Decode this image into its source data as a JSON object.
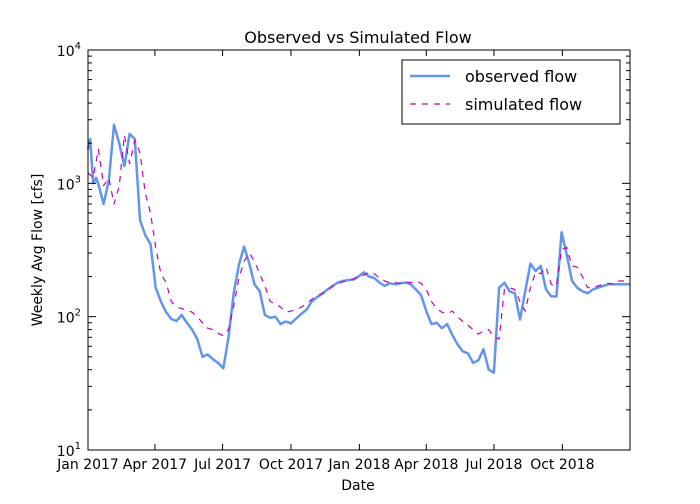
{
  "chart_data": {
    "type": "line",
    "title": "Observed vs Simulated Flow",
    "xlabel": "Date",
    "ylabel": "Weekly Avg Flow [cfs]",
    "yscale": "log",
    "ylim": [
      10,
      10000
    ],
    "xlim": [
      "2017-01-01",
      "2018-12-31"
    ],
    "grid": false,
    "legend_position": "top-right",
    "x_ticks": [
      {
        "date": "2017-01-01",
        "label": "Jan 2017"
      },
      {
        "date": "2017-04-01",
        "label": "Apr 2017"
      },
      {
        "date": "2017-07-01",
        "label": "Jul 2017"
      },
      {
        "date": "2017-10-01",
        "label": "Oct 2017"
      },
      {
        "date": "2018-01-01",
        "label": "Jan 2018"
      },
      {
        "date": "2018-04-01",
        "label": "Apr 2018"
      },
      {
        "date": "2018-07-01",
        "label": "Jul 2018"
      },
      {
        "date": "2018-10-01",
        "label": "Oct 2018"
      }
    ],
    "y_ticks": [
      {
        "value": 10,
        "base": "10",
        "exp": "1"
      },
      {
        "value": 100,
        "base": "10",
        "exp": "2"
      },
      {
        "value": 1000,
        "base": "10",
        "exp": "3"
      },
      {
        "value": 10000,
        "base": "10",
        "exp": "4"
      }
    ],
    "series": [
      {
        "name": "observed flow",
        "color": "#6495ed",
        "style": "solid",
        "points": [
          [
            "2017-01-01",
            1800
          ],
          [
            "2017-01-04",
            2150
          ],
          [
            "2017-01-08",
            1000
          ],
          [
            "2017-01-12",
            1100
          ],
          [
            "2017-01-15",
            980
          ],
          [
            "2017-01-22",
            700
          ],
          [
            "2017-01-29",
            1050
          ],
          [
            "2017-02-05",
            2750
          ],
          [
            "2017-02-12",
            2000
          ],
          [
            "2017-02-19",
            1350
          ],
          [
            "2017-02-26",
            2350
          ],
          [
            "2017-03-05",
            2150
          ],
          [
            "2017-03-12",
            530
          ],
          [
            "2017-03-19",
            410
          ],
          [
            "2017-03-26",
            350
          ],
          [
            "2017-04-02",
            165
          ],
          [
            "2017-04-09",
            130
          ],
          [
            "2017-04-16",
            108
          ],
          [
            "2017-04-23",
            96
          ],
          [
            "2017-04-30",
            93
          ],
          [
            "2017-05-07",
            103
          ],
          [
            "2017-05-14",
            90
          ],
          [
            "2017-05-21",
            80
          ],
          [
            "2017-05-28",
            68
          ],
          [
            "2017-06-04",
            50
          ],
          [
            "2017-06-11",
            52
          ],
          [
            "2017-06-18",
            48
          ],
          [
            "2017-06-25",
            45
          ],
          [
            "2017-07-02",
            41
          ],
          [
            "2017-07-09",
            70
          ],
          [
            "2017-07-16",
            150
          ],
          [
            "2017-07-23",
            245
          ],
          [
            "2017-07-30",
            335
          ],
          [
            "2017-08-06",
            250
          ],
          [
            "2017-08-13",
            175
          ],
          [
            "2017-08-20",
            155
          ],
          [
            "2017-08-27",
            103
          ],
          [
            "2017-09-03",
            98
          ],
          [
            "2017-09-10",
            100
          ],
          [
            "2017-09-17",
            88
          ],
          [
            "2017-09-24",
            92
          ],
          [
            "2017-10-01",
            89
          ],
          [
            "2017-10-08",
            97
          ],
          [
            "2017-10-15",
            105
          ],
          [
            "2017-10-22",
            113
          ],
          [
            "2017-10-29",
            130
          ],
          [
            "2017-11-05",
            140
          ],
          [
            "2017-11-12",
            148
          ],
          [
            "2017-11-19",
            160
          ],
          [
            "2017-11-26",
            170
          ],
          [
            "2017-12-03",
            180
          ],
          [
            "2017-12-10",
            185
          ],
          [
            "2017-12-17",
            188
          ],
          [
            "2017-12-24",
            190
          ],
          [
            "2017-12-31",
            200
          ],
          [
            "2018-01-07",
            215
          ],
          [
            "2018-01-14",
            200
          ],
          [
            "2018-01-21",
            195
          ],
          [
            "2018-01-28",
            180
          ],
          [
            "2018-02-04",
            170
          ],
          [
            "2018-02-11",
            178
          ],
          [
            "2018-02-18",
            175
          ],
          [
            "2018-02-25",
            178
          ],
          [
            "2018-03-04",
            180
          ],
          [
            "2018-03-11",
            175
          ],
          [
            "2018-03-18",
            160
          ],
          [
            "2018-03-25",
            145
          ],
          [
            "2018-04-01",
            110
          ],
          [
            "2018-04-08",
            88
          ],
          [
            "2018-04-15",
            90
          ],
          [
            "2018-04-22",
            82
          ],
          [
            "2018-04-29",
            88
          ],
          [
            "2018-05-06",
            73
          ],
          [
            "2018-05-13",
            62
          ],
          [
            "2018-05-20",
            55
          ],
          [
            "2018-05-27",
            53
          ],
          [
            "2018-06-03",
            45
          ],
          [
            "2018-06-10",
            47
          ],
          [
            "2018-06-17",
            57
          ],
          [
            "2018-06-24",
            40
          ],
          [
            "2018-07-01",
            38
          ],
          [
            "2018-07-08",
            165
          ],
          [
            "2018-07-15",
            180
          ],
          [
            "2018-07-22",
            155
          ],
          [
            "2018-07-29",
            150
          ],
          [
            "2018-08-05",
            95
          ],
          [
            "2018-08-12",
            155
          ],
          [
            "2018-08-19",
            250
          ],
          [
            "2018-08-26",
            220
          ],
          [
            "2018-09-02",
            240
          ],
          [
            "2018-09-09",
            160
          ],
          [
            "2018-09-16",
            142
          ],
          [
            "2018-09-23",
            142
          ],
          [
            "2018-09-30",
            430
          ],
          [
            "2018-10-07",
            290
          ],
          [
            "2018-10-14",
            185
          ],
          [
            "2018-10-21",
            165
          ],
          [
            "2018-10-28",
            155
          ],
          [
            "2018-11-04",
            150
          ],
          [
            "2018-11-11",
            160
          ],
          [
            "2018-11-18",
            165
          ],
          [
            "2018-11-25",
            170
          ],
          [
            "2018-12-02",
            175
          ],
          [
            "2018-12-09",
            175
          ],
          [
            "2018-12-16",
            175
          ],
          [
            "2018-12-31",
            175
          ]
        ]
      },
      {
        "name": "simulated flow",
        "color": "#bf00bf",
        "style": "dashed",
        "points": [
          [
            "2017-01-01",
            1200
          ],
          [
            "2017-01-08",
            1100
          ],
          [
            "2017-01-15",
            1800
          ],
          [
            "2017-01-22",
            960
          ],
          [
            "2017-01-29",
            1100
          ],
          [
            "2017-02-05",
            700
          ],
          [
            "2017-02-12",
            950
          ],
          [
            "2017-02-19",
            2300
          ],
          [
            "2017-02-26",
            1400
          ],
          [
            "2017-03-05",
            2100
          ],
          [
            "2017-03-12",
            1700
          ],
          [
            "2017-03-19",
            850
          ],
          [
            "2017-03-26",
            600
          ],
          [
            "2017-04-02",
            330
          ],
          [
            "2017-04-09",
            210
          ],
          [
            "2017-04-16",
            180
          ],
          [
            "2017-04-23",
            130
          ],
          [
            "2017-04-30",
            118
          ],
          [
            "2017-05-07",
            115
          ],
          [
            "2017-05-14",
            112
          ],
          [
            "2017-05-21",
            108
          ],
          [
            "2017-05-28",
            100
          ],
          [
            "2017-06-04",
            90
          ],
          [
            "2017-06-11",
            82
          ],
          [
            "2017-06-18",
            80
          ],
          [
            "2017-06-25",
            75
          ],
          [
            "2017-07-02",
            72
          ],
          [
            "2017-07-09",
            80
          ],
          [
            "2017-07-16",
            120
          ],
          [
            "2017-07-23",
            195
          ],
          [
            "2017-07-30",
            260
          ],
          [
            "2017-08-06",
            300
          ],
          [
            "2017-08-13",
            260
          ],
          [
            "2017-08-20",
            210
          ],
          [
            "2017-08-27",
            170
          ],
          [
            "2017-09-03",
            130
          ],
          [
            "2017-09-10",
            125
          ],
          [
            "2017-09-17",
            118
          ],
          [
            "2017-09-24",
            108
          ],
          [
            "2017-10-01",
            110
          ],
          [
            "2017-10-08",
            113
          ],
          [
            "2017-10-15",
            118
          ],
          [
            "2017-10-22",
            125
          ],
          [
            "2017-10-29",
            135
          ],
          [
            "2017-11-05",
            143
          ],
          [
            "2017-11-12",
            150
          ],
          [
            "2017-11-19",
            158
          ],
          [
            "2017-11-26",
            168
          ],
          [
            "2017-12-03",
            176
          ],
          [
            "2017-12-10",
            183
          ],
          [
            "2017-12-17",
            188
          ],
          [
            "2017-12-24",
            192
          ],
          [
            "2017-12-31",
            198
          ],
          [
            "2018-01-07",
            205
          ],
          [
            "2018-01-14",
            215
          ],
          [
            "2018-01-21",
            210
          ],
          [
            "2018-01-28",
            195
          ],
          [
            "2018-02-04",
            185
          ],
          [
            "2018-02-11",
            180
          ],
          [
            "2018-02-18",
            180
          ],
          [
            "2018-02-25",
            178
          ],
          [
            "2018-03-04",
            182
          ],
          [
            "2018-03-11",
            180
          ],
          [
            "2018-03-18",
            185
          ],
          [
            "2018-03-25",
            178
          ],
          [
            "2018-04-01",
            160
          ],
          [
            "2018-04-08",
            130
          ],
          [
            "2018-04-15",
            115
          ],
          [
            "2018-04-22",
            108
          ],
          [
            "2018-04-29",
            105
          ],
          [
            "2018-05-06",
            110
          ],
          [
            "2018-05-13",
            100
          ],
          [
            "2018-05-20",
            92
          ],
          [
            "2018-05-27",
            86
          ],
          [
            "2018-06-03",
            80
          ],
          [
            "2018-06-10",
            74
          ],
          [
            "2018-06-17",
            78
          ],
          [
            "2018-06-24",
            80
          ],
          [
            "2018-07-01",
            70
          ],
          [
            "2018-07-08",
            68
          ],
          [
            "2018-07-15",
            160
          ],
          [
            "2018-07-22",
            165
          ],
          [
            "2018-07-29",
            160
          ],
          [
            "2018-08-05",
            130
          ],
          [
            "2018-08-12",
            110
          ],
          [
            "2018-08-19",
            165
          ],
          [
            "2018-08-26",
            215
          ],
          [
            "2018-09-02",
            210
          ],
          [
            "2018-09-09",
            235
          ],
          [
            "2018-09-16",
            175
          ],
          [
            "2018-09-23",
            170
          ],
          [
            "2018-09-30",
            320
          ],
          [
            "2018-10-07",
            330
          ],
          [
            "2018-10-14",
            240
          ],
          [
            "2018-10-21",
            235
          ],
          [
            "2018-10-28",
            200
          ],
          [
            "2018-11-04",
            165
          ],
          [
            "2018-11-11",
            165
          ],
          [
            "2018-11-18",
            170
          ],
          [
            "2018-11-25",
            175
          ],
          [
            "2018-12-02",
            178
          ],
          [
            "2018-12-09",
            175
          ],
          [
            "2018-12-16",
            185
          ],
          [
            "2018-12-31",
            185
          ]
        ]
      }
    ]
  }
}
